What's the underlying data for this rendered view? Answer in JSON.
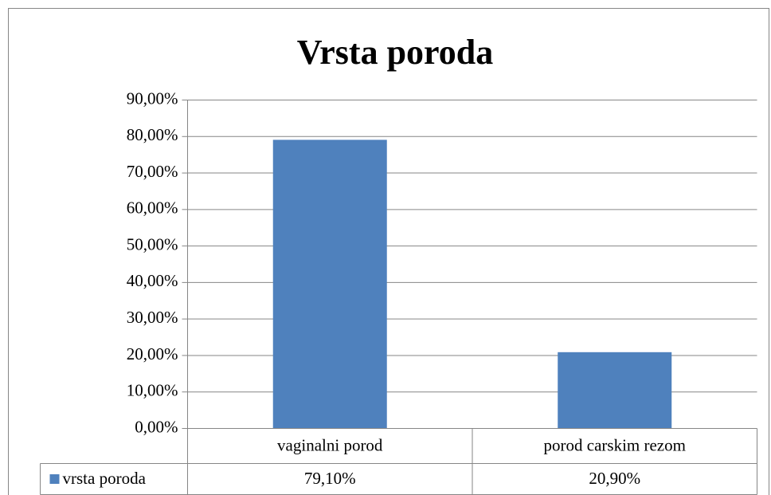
{
  "chart_data": {
    "type": "bar",
    "title": "Vrsta poroda",
    "categories": [
      "vaginalni porod",
      "porod carskim rezom"
    ],
    "series": [
      {
        "name": "vrsta poroda",
        "color": "#4f81bd",
        "values": [
          79.1,
          20.9
        ],
        "value_labels": [
          "79,10%",
          "20,90%"
        ]
      }
    ],
    "ylim": [
      0,
      90
    ],
    "yticks": [
      {
        "value": 0,
        "label": "0,00%"
      },
      {
        "value": 10,
        "label": "10,00%"
      },
      {
        "value": 20,
        "label": "20,00%"
      },
      {
        "value": 30,
        "label": "30,00%"
      },
      {
        "value": 40,
        "label": "40,00%"
      },
      {
        "value": 50,
        "label": "50,00%"
      },
      {
        "value": 60,
        "label": "60,00%"
      },
      {
        "value": 70,
        "label": "70,00%"
      },
      {
        "value": 80,
        "label": "80,00%"
      },
      {
        "value": 90,
        "label": "90,00%"
      }
    ],
    "grid": true
  }
}
